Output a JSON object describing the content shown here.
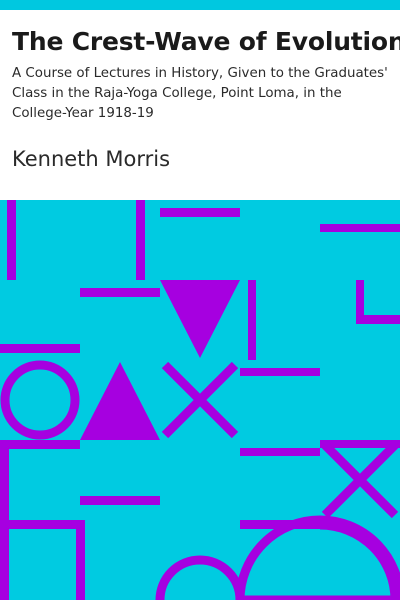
{
  "cover": {
    "title": "The Crest-Wave of Evolution",
    "subtitle": "A Course of Lectures in History, Given to the Graduates' Class in the Raja-Yoga College, Point Loma, in the College-Year 1918-19",
    "author": "Kenneth Morris"
  },
  "colors": {
    "accent_bar": "#00c8e0",
    "pattern_background": "#00cbe1",
    "pattern_shapes": "#a600e0",
    "title_text": "#1a1a1a"
  },
  "icons": [
    "circle-shape",
    "triangle-up-shape",
    "triangle-down-shape",
    "x-shape"
  ]
}
